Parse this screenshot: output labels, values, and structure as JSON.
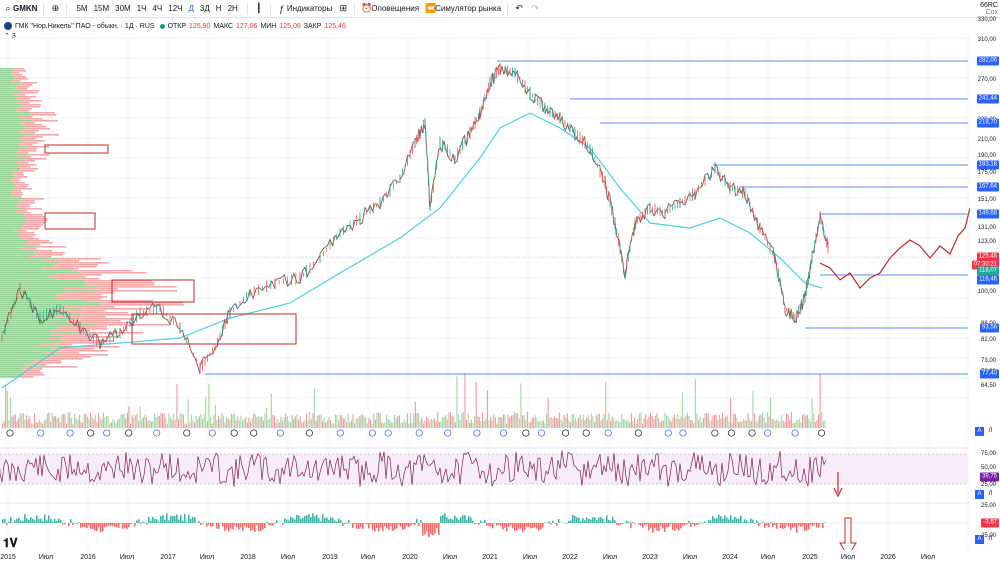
{
  "toolbar": {
    "symbol": "GMKN",
    "timeframes": [
      "5М",
      "15М",
      "30М",
      "1Ч",
      "4Ч",
      "12Ч",
      "Д",
      "3Д",
      "Н",
      "2Н"
    ],
    "active_timeframe": "Д",
    "indicators_label": "Индикаторы",
    "alerts_label": "Оповещения",
    "replay_label": "Симулятор рынка",
    "corner_top": "66RC",
    "corner_bottom": "Сох"
  },
  "legend": {
    "title": "ГМК \"Нор.Никель\" ПАО - обыкн. · 1Д · RUS",
    "open_label": "ОТКР",
    "open": "125,90",
    "high_label": "МАКС",
    "high": "127,06",
    "low_label": "МИН",
    "low": "125,06",
    "close_label": "ЗАКР",
    "close": "125,46",
    "collapse": "3"
  },
  "price_axis": {
    "ticks": [
      "330,00",
      "310,00",
      "290,00",
      "270,00",
      "250,00",
      "230,00",
      "210,00",
      "190,00",
      "175,00",
      "163,00",
      "151,00",
      "139,00",
      "131,00",
      "123,00",
      "108,00",
      "100,00",
      "88,00",
      "82,00",
      "73,00",
      "70,00",
      "64,50"
    ],
    "levels": [
      {
        "value": "282,06",
        "color": "#2962ff"
      },
      {
        "value": "241,44",
        "color": "#2962ff"
      },
      {
        "value": "218,70",
        "color": "#2962ff"
      },
      {
        "value": "183,18",
        "color": "#2962ff"
      },
      {
        "value": "167,64",
        "color": "#2962ff"
      },
      {
        "value": "149,68",
        "color": "#2962ff"
      },
      {
        "value": "125,46",
        "color": "#f23645"
      },
      {
        "value": "07:30:21",
        "color": "#f23645"
      },
      {
        "value": "118,07",
        "color": "#26a69a"
      },
      {
        "value": "116,46",
        "color": "#2962ff"
      },
      {
        "value": "93,56",
        "color": "#2962ff"
      },
      {
        "value": "77,40",
        "color": "#2962ff"
      }
    ]
  },
  "rsi_axis": {
    "ticks": [
      "75,00",
      "50,00",
      "25,00"
    ],
    "value": "39,75",
    "value_color": "#7b1fa2"
  },
  "macd_axis": {
    "ticks": [
      "25,00",
      "-25,00"
    ],
    "value": "-3,67",
    "value_color": "#f23645"
  },
  "time_axis": [
    "2015",
    "Июл",
    "2016",
    "Июл",
    "2017",
    "Июл",
    "2018",
    "Июл",
    "2019",
    "Июл",
    "2020",
    "Июл",
    "2021",
    "Июл",
    "2022",
    "Июл",
    "2023",
    "Июл",
    "2024",
    "Июл",
    "2025",
    "Июл",
    "2026",
    "Июл"
  ],
  "pane_buttons": {
    "auto": "A",
    "log": "Л"
  },
  "event_markers": {
    "dividend": "D",
    "earnings": "E"
  },
  "colors": {
    "up": "#26a69a",
    "down": "#ef5350",
    "ma": "#4dd0e1",
    "level": "#2962ff",
    "annotation": "#c62828",
    "rsi": "#7e1f4f"
  }
}
